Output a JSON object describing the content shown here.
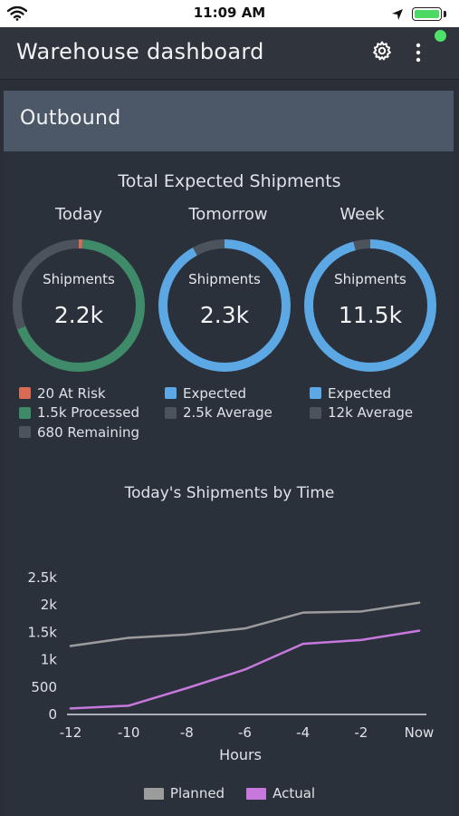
{
  "status_bar": {
    "time": "11:09 AM"
  },
  "header": {
    "title": "Warehouse dashboard"
  },
  "panel": {
    "title": "Outbound"
  },
  "summary": {
    "title": "Total Expected Shipments",
    "donuts": [
      {
        "label": "Today",
        "center_label": "Shipments",
        "value": "2.2k",
        "segments": [
          {
            "value": 20,
            "color": "#d96b55"
          },
          {
            "value": 1500,
            "color": "#3f8a69"
          },
          {
            "value": 680,
            "color": "#4d535d"
          }
        ],
        "legend": [
          {
            "text": "20 At Risk",
            "color": "#d96b55"
          },
          {
            "text": "1.5k Processed",
            "color": "#3f8a69"
          },
          {
            "text": "680 Remaining",
            "color": "#4d535d"
          }
        ]
      },
      {
        "label": "Tomorrow",
        "center_label": "Shipments",
        "value": "2.3k",
        "segments": [
          {
            "value": 2300,
            "color": "#5ba8e5"
          },
          {
            "value": 200,
            "color": "#4d535d"
          }
        ],
        "legend": [
          {
            "text": "Expected",
            "color": "#5ba8e5"
          },
          {
            "text": "2.5k Average",
            "color": "#4d535d"
          }
        ]
      },
      {
        "label": "Week",
        "center_label": "Shipments",
        "value": "11.5k",
        "segments": [
          {
            "value": 11500,
            "color": "#5ba8e5"
          },
          {
            "value": 500,
            "color": "#4d535d"
          }
        ],
        "legend": [
          {
            "text": "Expected",
            "color": "#5ba8e5"
          },
          {
            "text": "12k Average",
            "color": "#4d535d"
          }
        ]
      }
    ]
  },
  "chart_data": {
    "type": "line",
    "title": "Today's Shipments by Time",
    "xlabel": "Hours",
    "ylabel": "",
    "x": [
      -12,
      -10,
      -8,
      -6,
      -4,
      -2,
      0
    ],
    "x_tick_labels": [
      "-12",
      "-10",
      "-8",
      "-6",
      "-4",
      "-2",
      "Now"
    ],
    "ylim": [
      0,
      2500
    ],
    "y_ticks": [
      0,
      500,
      1000,
      1500,
      2000,
      2500
    ],
    "y_tick_labels": [
      "0",
      "500",
      "1k",
      "1.5k",
      "2k",
      "2.5k"
    ],
    "grid": false,
    "legend_position": "bottom",
    "series": [
      {
        "name": "Planned",
        "color": "#9c9c9c",
        "points": [
          [
            -12,
            1250
          ],
          [
            -10,
            1400
          ],
          [
            -8,
            1460
          ],
          [
            -6,
            1570
          ],
          [
            -4,
            1860
          ],
          [
            -2,
            1880
          ],
          [
            0,
            2040
          ]
        ]
      },
      {
        "name": "Actual",
        "color": "#c678dd",
        "points": [
          [
            -12,
            110
          ],
          [
            -10,
            160
          ],
          [
            -8,
            480
          ],
          [
            -6,
            820
          ],
          [
            -4,
            1290
          ],
          [
            -2,
            1360
          ],
          [
            0,
            1530
          ]
        ]
      }
    ]
  }
}
